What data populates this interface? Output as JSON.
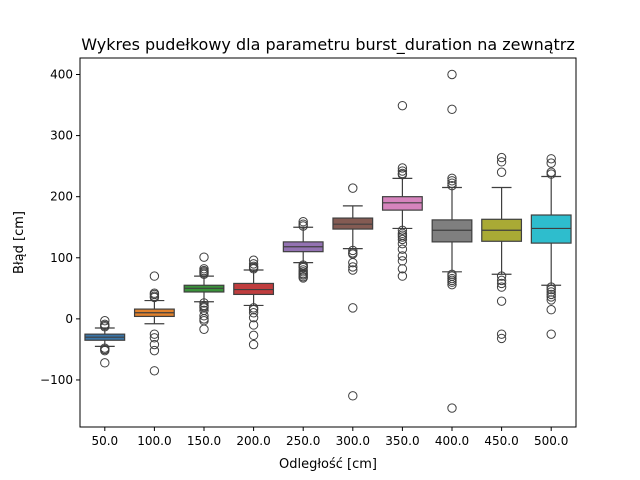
{
  "chart_data": {
    "type": "box",
    "title": "Wykres pudełkowy dla parametru burst_duration na zewnątrz",
    "xlabel": "Odległość [cm]",
    "ylabel": "Błąd [cm]",
    "ylim": [
      -177,
      427
    ],
    "yticks": [
      -100,
      0,
      100,
      200,
      300,
      400
    ],
    "ytick_labels": [
      "−100",
      "0",
      "100",
      "200",
      "300",
      "400"
    ],
    "grid": false,
    "categories": [
      "50.0",
      "100.0",
      "150.0",
      "200.0",
      "250.0",
      "300.0",
      "350.0",
      "400.0",
      "450.0",
      "500.0"
    ],
    "boxes": [
      {
        "category": "50.0",
        "color": "#3a75a7",
        "whisker_low": -45,
        "q1": -35,
        "median": -30,
        "q3": -25,
        "whisker_high": -15,
        "outliers": [
          -3,
          -9,
          -11,
          -13,
          -48,
          -50,
          -52,
          -72
        ]
      },
      {
        "category": "100.0",
        "color": "#e1812c",
        "whisker_low": -8,
        "q1": 4,
        "median": 10,
        "q3": 16,
        "whisker_high": 30,
        "outliers": [
          70,
          42,
          40,
          37,
          35,
          -25,
          -31,
          -42,
          -52,
          -85
        ]
      },
      {
        "category": "150.0",
        "color": "#3a923a",
        "whisker_low": 28,
        "q1": 44,
        "median": 50,
        "q3": 55,
        "whisker_high": 70,
        "outliers": [
          101,
          82,
          79,
          77,
          75,
          73,
          26,
          22,
          20,
          18,
          14,
          5,
          0,
          -3,
          -17
        ]
      },
      {
        "category": "200.0",
        "color": "#c03d3e",
        "whisker_low": 22,
        "q1": 40,
        "median": 48,
        "q3": 58,
        "whisker_high": 80,
        "outliers": [
          96,
          90,
          86,
          84,
          82,
          18,
          15,
          10,
          2,
          -10,
          -27,
          -42
        ]
      },
      {
        "category": "250.0",
        "color": "#9372b2",
        "whisker_low": 92,
        "q1": 110,
        "median": 118,
        "q3": 126,
        "whisker_high": 150,
        "outliers": [
          159,
          155,
          152,
          88,
          86,
          84,
          80,
          77,
          74,
          72,
          69,
          67
        ]
      },
      {
        "category": "300.0",
        "color": "#845b53",
        "whisker_low": 115,
        "q1": 147,
        "median": 155,
        "q3": 165,
        "whisker_high": 185,
        "outliers": [
          214,
          112,
          108,
          106,
          92,
          85,
          80,
          18,
          -126
        ]
      },
      {
        "category": "350.0",
        "color": "#d684bd",
        "whisker_low": 148,
        "q1": 178,
        "median": 190,
        "q3": 200,
        "whisker_high": 230,
        "outliers": [
          349,
          247,
          242,
          238,
          236,
          145,
          140,
          137,
          134,
          130,
          123,
          114,
          103,
          95,
          82,
          70
        ]
      },
      {
        "category": "400.0",
        "color": "#7f7f7f",
        "whisker_low": 77,
        "q1": 126,
        "median": 145,
        "q3": 162,
        "whisker_high": 215,
        "outliers": [
          400,
          343,
          230,
          226,
          222,
          218,
          73,
          70,
          66,
          63,
          60,
          56,
          -146
        ]
      },
      {
        "category": "450.0",
        "color": "#a9aa35",
        "whisker_low": 73,
        "q1": 127,
        "median": 145,
        "q3": 163,
        "whisker_high": 215,
        "outliers": [
          264,
          257,
          240,
          70,
          63,
          58,
          52,
          29,
          -25,
          -32
        ]
      },
      {
        "category": "500.0",
        "color": "#2ebdcd",
        "whisker_low": 55,
        "q1": 124,
        "median": 148,
        "q3": 170,
        "whisker_high": 233,
        "outliers": [
          262,
          255,
          240,
          237,
          52,
          48,
          44,
          40,
          36,
          31,
          15,
          -25
        ]
      }
    ]
  }
}
